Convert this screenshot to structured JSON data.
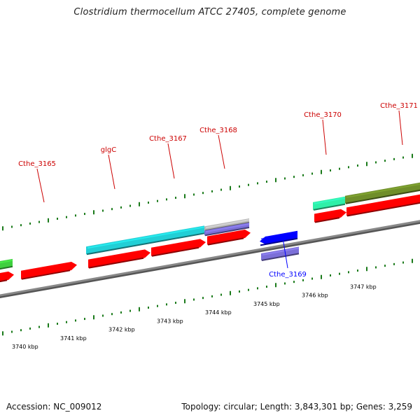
{
  "title": "Clostridium thermocellum ATCC 27405, complete genome",
  "footer": {
    "accession": "Accession: NC_009012",
    "summary": "Topology: circular; Length: 3,843,301 bp; Genes: 3,259"
  },
  "colors": {
    "forward_gene": "#ff0000",
    "reverse_gene": "#0000ff",
    "backbone": "#888888",
    "tick": "#1a7a1a",
    "cds_cyan": "#22cfd6",
    "cds_purple": "#7b6fd8",
    "cds_gray": "#b8b8b8",
    "cds_mint": "#2ef0a8",
    "cds_olive": "#6f8e2a",
    "cds_green": "#3ecf3e"
  },
  "scale_labels": [
    "3740 kbp",
    "3741 kbp",
    "3742 kbp",
    "3743 kbp",
    "3744 kbp",
    "3745 kbp",
    "3746 kbp",
    "3747 kbp"
  ],
  "gene_labels": [
    {
      "text": "Cthe_3165",
      "strand": "forward"
    },
    {
      "text": "glgC",
      "strand": "forward"
    },
    {
      "text": "Cthe_3167",
      "strand": "forward"
    },
    {
      "text": "Cthe_3168",
      "strand": "forward"
    },
    {
      "text": "Cthe_3169",
      "strand": "reverse"
    },
    {
      "text": "Cthe_3170",
      "strand": "forward"
    },
    {
      "text": "Cthe_3171",
      "strand": "forward"
    }
  ]
}
